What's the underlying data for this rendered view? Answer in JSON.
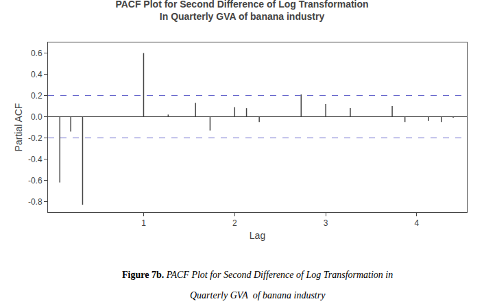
{
  "chart_data": {
    "type": "stem",
    "title": "PACF Plot for Second Difference of Log Transformation",
    "subtitle": "In Quarterly GVA of banana industry",
    "xlabel": "Lag",
    "ylabel": "Partial ACF",
    "x": [
      0.08,
      0.2,
      0.33,
      1.0,
      1.27,
      1.57,
      1.73,
      2.0,
      2.13,
      2.27,
      2.73,
      3.0,
      3.27,
      3.73,
      3.87,
      4.13,
      4.27,
      4.4
    ],
    "values": [
      -0.62,
      -0.14,
      -0.83,
      0.6,
      0.02,
      0.13,
      -0.13,
      0.09,
      0.08,
      -0.05,
      0.21,
      0.12,
      0.08,
      0.1,
      -0.05,
      -0.04,
      -0.05,
      -0.01
    ],
    "color": "#444444",
    "confidence": {
      "values": [
        0.2,
        -0.2
      ],
      "color": "#6666cc",
      "line_style": "dashed"
    },
    "xlim": [
      -0.05,
      4.55
    ],
    "xticks": [
      1,
      2,
      3,
      4
    ],
    "ylim": [
      -0.9,
      0.7
    ],
    "yticks": [
      -0.8,
      -0.6,
      -0.4,
      -0.2,
      {
        "value": 0,
        "label": "0.0"
      },
      0.2,
      0.4,
      0.6
    ],
    "grid": false,
    "annotations": [
      "Figure 7b.",
      "PACF Plot for Second Difference of Log Transformation in",
      "Quarterly GVA  of banana industry"
    ]
  }
}
